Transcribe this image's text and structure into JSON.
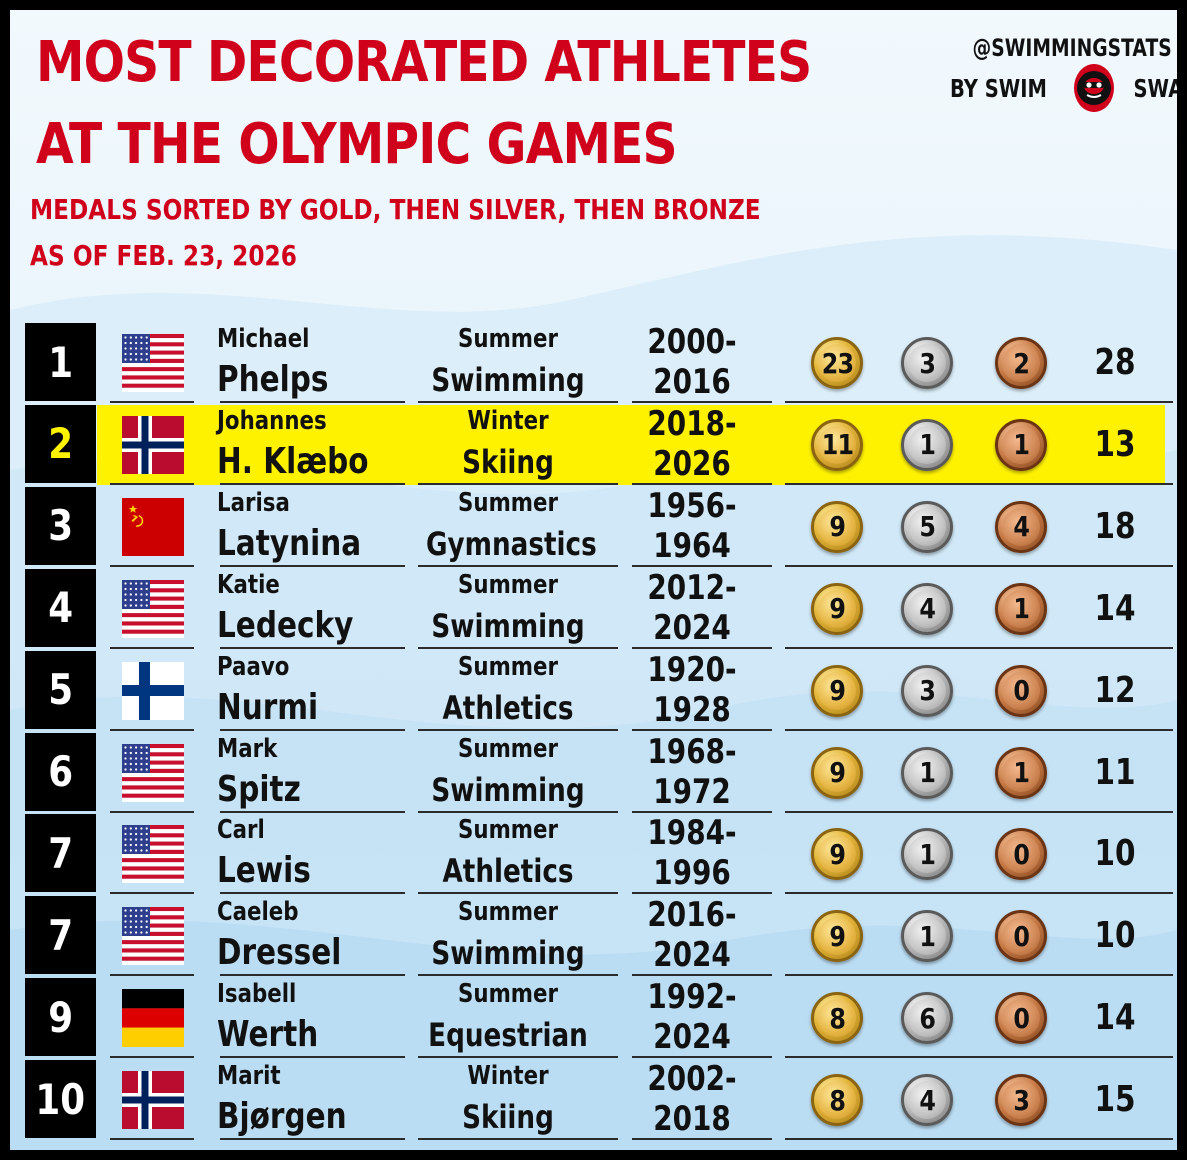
{
  "header": {
    "title_lines": [
      "MOST DECORATED ATHLETES",
      "AT THE OLYMPIC GAMES"
    ],
    "subtitle_lines": [
      "MEDALS SORTED BY GOLD, THEN SILVER, THEN BRONZE",
      "AS OF FEB. 23, 2026"
    ]
  },
  "credit": {
    "handle": "@SWIMMINGSTATS",
    "by_left": "BY SWIM",
    "by_right": "SWAM",
    "logo_icon": "swimswam-logo-icon"
  },
  "colors": {
    "title_red": "#d0021b",
    "highlight_yellow": "#fff200",
    "rank_box": "#000000",
    "gold": "#e3b53a",
    "silver": "#b9b9b9",
    "bronze": "#c77a45"
  },
  "athletes": [
    {
      "rank": "1",
      "country_flag": "usa-flag",
      "first": "Michael",
      "last": "Phelps",
      "season": "Summer",
      "sport": "Swimming",
      "years_start": "2000-",
      "years_end": "2016",
      "gold": "23",
      "silver": "3",
      "bronze": "2",
      "total": "28",
      "highlight": false
    },
    {
      "rank": "2",
      "country_flag": "norway-flag",
      "first": "Johannes",
      "last": "H. Klæbo",
      "season": "Winter",
      "sport": "Skiing",
      "years_start": "2018-",
      "years_end": "2026",
      "gold": "11",
      "silver": "1",
      "bronze": "1",
      "total": "13",
      "highlight": true
    },
    {
      "rank": "3",
      "country_flag": "ussr-flag",
      "first": "Larisa",
      "last": "Latynina",
      "season": "Summer",
      "sport": "Gymnastics",
      "years_start": "1956-",
      "years_end": "1964",
      "gold": "9",
      "silver": "5",
      "bronze": "4",
      "total": "18",
      "highlight": false
    },
    {
      "rank": "4",
      "country_flag": "usa-flag",
      "first": "Katie",
      "last": "Ledecky",
      "season": "Summer",
      "sport": "Swimming",
      "years_start": "2012-",
      "years_end": "2024",
      "gold": "9",
      "silver": "4",
      "bronze": "1",
      "total": "14",
      "highlight": false
    },
    {
      "rank": "5",
      "country_flag": "finland-flag",
      "first": "Paavo",
      "last": "Nurmi",
      "season": "Summer",
      "sport": "Athletics",
      "years_start": "1920-",
      "years_end": "1928",
      "gold": "9",
      "silver": "3",
      "bronze": "0",
      "total": "12",
      "highlight": false
    },
    {
      "rank": "6",
      "country_flag": "usa-flag",
      "first": "Mark",
      "last": "Spitz",
      "season": "Summer",
      "sport": "Swimming",
      "years_start": "1968-",
      "years_end": "1972",
      "gold": "9",
      "silver": "1",
      "bronze": "1",
      "total": "11",
      "highlight": false
    },
    {
      "rank": "7",
      "country_flag": "usa-flag",
      "first": "Carl",
      "last": "Lewis",
      "season": "Summer",
      "sport": "Athletics",
      "years_start": "1984-",
      "years_end": "1996",
      "gold": "9",
      "silver": "1",
      "bronze": "0",
      "total": "10",
      "highlight": false
    },
    {
      "rank": "7",
      "country_flag": "usa-flag",
      "first": "Caeleb",
      "last": "Dressel",
      "season": "Summer",
      "sport": "Swimming",
      "years_start": "2016-",
      "years_end": "2024",
      "gold": "9",
      "silver": "1",
      "bronze": "0",
      "total": "10",
      "highlight": false
    },
    {
      "rank": "9",
      "country_flag": "germany-flag",
      "first": "Isabell",
      "last": "Werth",
      "season": "Summer",
      "sport": "Equestrian",
      "years_start": "1992-",
      "years_end": "2024",
      "gold": "8",
      "silver": "6",
      "bronze": "0",
      "total": "14",
      "highlight": false
    },
    {
      "rank": "10",
      "country_flag": "norway-flag",
      "first": "Marit",
      "last": "Bjørgen",
      "season": "Winter",
      "sport": "Skiing",
      "years_start": "2002-",
      "years_end": "2018",
      "gold": "8",
      "silver": "4",
      "bronze": "3",
      "total": "15",
      "highlight": false
    }
  ]
}
